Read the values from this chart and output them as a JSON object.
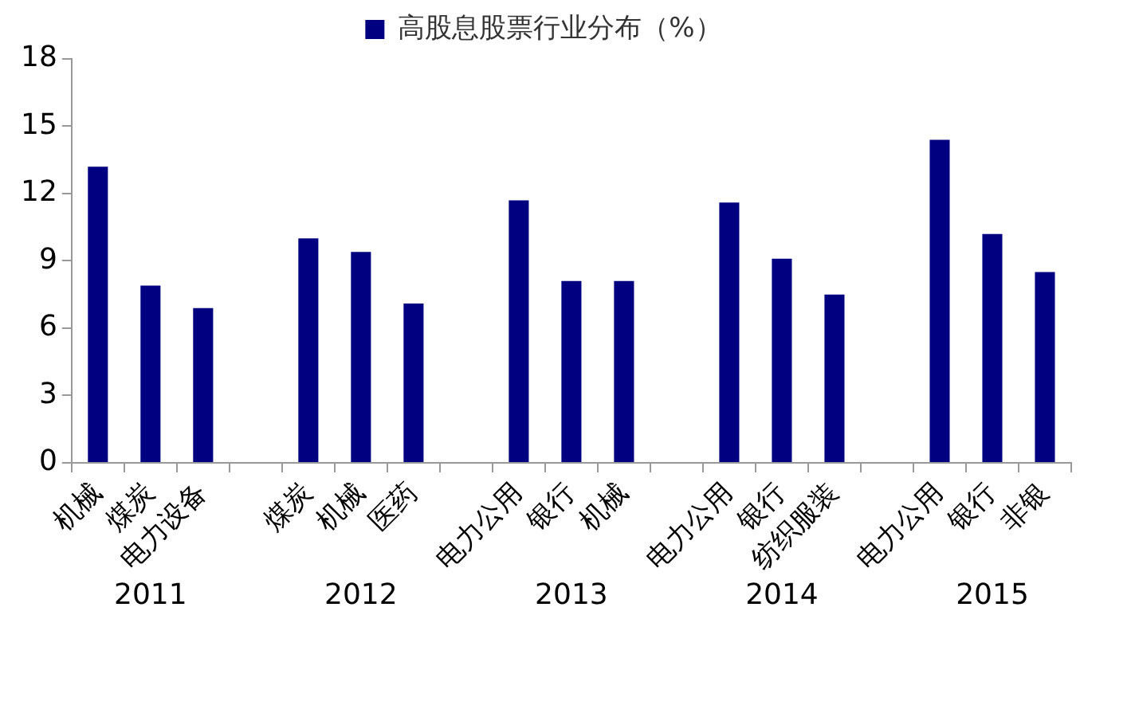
{
  "chart_data": {
    "type": "bar",
    "categories": [
      "机械",
      "煤炭",
      "电力设备",
      null,
      "煤炭",
      "机械",
      "医药",
      null,
      "电力公用",
      "银行",
      "机械",
      null,
      "电力公用",
      "银行",
      "纺织服装",
      null,
      "电力公用",
      "银行",
      "非银"
    ],
    "series": [
      {
        "name": "高股息股票行业分布（%）",
        "color": "#000080",
        "values": [
          13.2,
          7.9,
          6.9,
          null,
          10.0,
          9.4,
          7.1,
          null,
          11.7,
          8.1,
          8.1,
          null,
          11.6,
          9.1,
          7.5,
          null,
          14.4,
          10.2,
          8.5
        ]
      }
    ],
    "ylim": [
      0,
      18
    ],
    "yticks": [
      0,
      3,
      6,
      9,
      12,
      15,
      18
    ],
    "annotations": [
      "2011",
      "2012",
      "2013",
      "2014",
      "2015"
    ],
    "grid": false,
    "legend": "top"
  }
}
